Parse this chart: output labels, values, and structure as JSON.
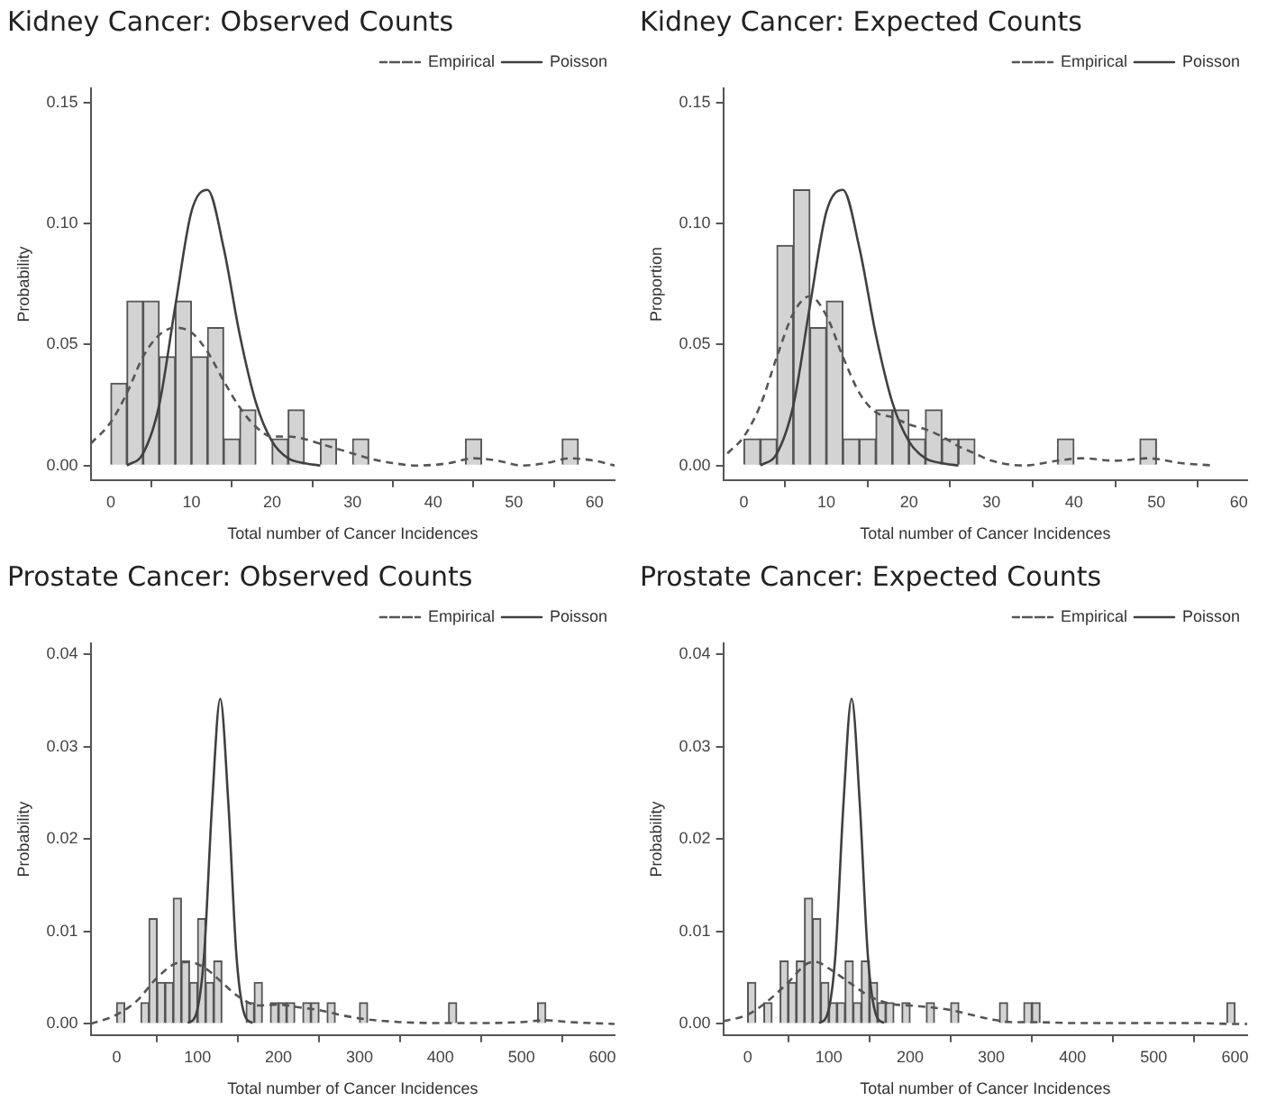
{
  "chart_data": [
    {
      "type": "histogram",
      "title": "Kidney Cancer: Observed Counts",
      "xlabel": "Total number of Cancer Incidences",
      "ylabel": "Probability",
      "color": "#d3d3d3",
      "legend": "top right",
      "bins": [
        0,
        2,
        4,
        6,
        8,
        10,
        12,
        14,
        16,
        18,
        20,
        22,
        24,
        26,
        28,
        30,
        32,
        34,
        36,
        38,
        40,
        42,
        44,
        46,
        48,
        50,
        52,
        54,
        56,
        58
      ],
      "values": [
        0.034,
        0.068,
        0.068,
        0.045,
        0.068,
        0.045,
        0.057,
        0.011,
        0.023,
        0,
        0.011,
        0.023,
        0,
        0.011,
        0,
        0.011,
        0,
        0,
        0,
        0,
        0,
        0,
        0.011,
        0,
        0,
        0,
        0,
        0,
        0.011
      ],
      "series": [
        {
          "type": "line",
          "name": "Empirical",
          "color": "#555555",
          "line_style": "dashed",
          "x": [
            -2.5,
            0,
            2,
            4,
            6,
            8,
            10,
            12,
            14,
            16,
            18,
            20,
            22,
            24,
            26,
            28,
            30,
            32,
            35,
            38,
            42,
            45,
            48,
            51,
            54,
            57,
            60,
            62.5
          ],
          "values": [
            0.009,
            0.018,
            0.03,
            0.045,
            0.054,
            0.057,
            0.055,
            0.047,
            0.035,
            0.024,
            0.016,
            0.012,
            0.012,
            0.011,
            0.009,
            0.007,
            0.005,
            0.003,
            0.001,
            0,
            0.001,
            0.003,
            0.002,
            0,
            0.001,
            0.003,
            0.002,
            0
          ]
        },
        {
          "type": "line",
          "name": "Poisson",
          "color": "#404040",
          "line_style": "solid",
          "x": [
            2,
            4,
            6,
            8,
            10,
            12,
            14,
            16,
            18,
            20,
            22,
            24,
            26
          ],
          "values": [
            0,
            0.005,
            0.025,
            0.066,
            0.105,
            0.114,
            0.09,
            0.054,
            0.026,
            0.01,
            0.003,
            0.001,
            0
          ]
        }
      ],
      "xlim": [
        -2.5,
        62.5
      ],
      "ylim": [
        -0.006,
        0.156
      ],
      "xticks": [
        0,
        10,
        20,
        30,
        40,
        50,
        60
      ],
      "yticks": [
        {
          "value": 0,
          "label": "0.00"
        },
        {
          "value": 0.05,
          "label": "0.05"
        },
        {
          "value": 0.1,
          "label": "0.10"
        },
        {
          "value": 0.15,
          "label": "0.15"
        }
      ]
    },
    {
      "type": "histogram",
      "title": "Kidney Cancer: Expected Counts",
      "xlabel": "Total number of Cancer Incidences",
      "ylabel": "Proportion",
      "color": "#d3d3d3",
      "legend": "top right",
      "bins": [
        0,
        2,
        4,
        6,
        8,
        10,
        12,
        14,
        16,
        18,
        20,
        22,
        24,
        26,
        28,
        30,
        32,
        34,
        36,
        38,
        40,
        42,
        44,
        46,
        48,
        50
      ],
      "values": [
        0.011,
        0.011,
        0.091,
        0.114,
        0.057,
        0.068,
        0.011,
        0.011,
        0.023,
        0.023,
        0.011,
        0.023,
        0.011,
        0.011,
        0,
        0,
        0,
        0,
        0,
        0.011,
        0,
        0,
        0,
        0,
        0.011
      ],
      "series": [
        {
          "type": "line",
          "name": "Empirical",
          "color": "#555555",
          "line_style": "dashed",
          "x": [
            -2,
            0,
            2,
            4,
            6,
            8,
            10,
            12,
            14,
            16,
            18,
            20,
            22,
            24,
            26,
            28,
            30,
            34,
            38,
            41,
            45,
            49,
            53,
            57
          ],
          "values": [
            0.005,
            0.012,
            0.025,
            0.045,
            0.063,
            0.07,
            0.062,
            0.045,
            0.03,
            0.022,
            0.02,
            0.017,
            0.015,
            0.012,
            0.008,
            0.005,
            0.002,
            0,
            0.002,
            0.003,
            0.002,
            0.003,
            0.001,
            0
          ]
        },
        {
          "type": "line",
          "name": "Poisson",
          "color": "#404040",
          "line_style": "solid",
          "x": [
            2,
            4,
            6,
            8,
            10,
            12,
            14,
            16,
            18,
            20,
            22,
            24,
            26
          ],
          "values": [
            0,
            0.005,
            0.025,
            0.066,
            0.105,
            0.114,
            0.09,
            0.054,
            0.026,
            0.01,
            0.003,
            0.001,
            0
          ]
        }
      ],
      "xlim": [
        -2.5,
        61
      ],
      "ylim": [
        -0.006,
        0.156
      ],
      "xticks": [
        0,
        10,
        20,
        30,
        40,
        50,
        60
      ],
      "yticks": [
        {
          "value": 0,
          "label": "0.00"
        },
        {
          "value": 0.05,
          "label": "0.05"
        },
        {
          "value": 0.1,
          "label": "0.10"
        },
        {
          "value": 0.15,
          "label": "0.15"
        }
      ]
    },
    {
      "type": "histogram",
      "title": "Prostate Cancer: Observed Counts",
      "xlabel": "Total number of Cancer Incidences",
      "ylabel": "Probability",
      "color": "#d3d3d3",
      "legend": "top right",
      "bins": [
        0,
        10,
        20,
        30,
        40,
        50,
        60,
        70,
        80,
        90,
        100,
        110,
        120,
        130,
        140,
        150,
        160,
        170,
        180,
        190,
        200,
        210,
        220,
        230,
        240,
        250,
        260,
        270,
        280,
        290,
        300,
        310,
        320,
        330,
        340,
        350,
        360,
        370,
        380,
        390,
        400,
        410,
        420,
        430,
        440,
        450,
        460,
        470,
        480,
        490,
        500,
        510,
        520,
        530
      ],
      "values": [
        0.0023,
        0,
        0,
        0.0023,
        0.0114,
        0.0045,
        0.0045,
        0.0136,
        0.0068,
        0.0045,
        0.0114,
        0.0045,
        0.0068,
        0,
        0,
        0,
        0.0023,
        0.0045,
        0,
        0.0023,
        0.0023,
        0.0023,
        0,
        0.0023,
        0.0023,
        0,
        0.0023,
        0,
        0,
        0,
        0.0023,
        0,
        0,
        0,
        0,
        0,
        0,
        0,
        0,
        0,
        0,
        0.0023,
        0,
        0,
        0,
        0,
        0,
        0,
        0,
        0,
        0,
        0,
        0.0023
      ],
      "series": [
        {
          "type": "line",
          "name": "Empirical",
          "color": "#555555",
          "line_style": "dashed",
          "x": [
            -32,
            0,
            25,
            50,
            75,
            90,
            110,
            130,
            150,
            175,
            200,
            225,
            250,
            275,
            300,
            350,
            400,
            450,
            500,
            530,
            560,
            615
          ],
          "values": [
            0,
            0.001,
            0.0025,
            0.005,
            0.0066,
            0.0067,
            0.006,
            0.0045,
            0.003,
            0.002,
            0.0021,
            0.0018,
            0.0015,
            0.001,
            0.0006,
            0.0002,
            0.0001,
            0.0001,
            0.0002,
            0.0004,
            0.0002,
            0
          ]
        },
        {
          "type": "line",
          "name": "Poisson",
          "color": "#404040",
          "line_style": "solid",
          "x": [
            88,
            98,
            108,
            118,
            128,
            138,
            148,
            158,
            168
          ],
          "values": [
            0.0001,
            0.001,
            0.0074,
            0.0239,
            0.0352,
            0.0239,
            0.0074,
            0.001,
            0.0001
          ]
        }
      ],
      "xlim": [
        -32,
        615
      ],
      "ylim": [
        -0.0012,
        0.0412
      ],
      "xticks": [
        0,
        100,
        200,
        300,
        400,
        500,
        600
      ],
      "yticks": [
        {
          "value": 0,
          "label": "0.00"
        },
        {
          "value": 0.01,
          "label": "0.01"
        },
        {
          "value": 0.02,
          "label": "0.02"
        },
        {
          "value": 0.03,
          "label": "0.03"
        },
        {
          "value": 0.04,
          "label": "0.04"
        }
      ]
    },
    {
      "type": "histogram",
      "title": "Prostate Cancer: Expected Counts",
      "xlabel": "Total number of Cancer Incidences",
      "ylabel": "Probability",
      "color": "#d3d3d3",
      "legend": "top right",
      "bins": [
        0,
        10,
        20,
        30,
        40,
        50,
        60,
        70,
        80,
        90,
        100,
        110,
        120,
        130,
        140,
        150,
        160,
        170,
        180,
        190,
        200,
        210,
        220,
        230,
        240,
        250,
        260,
        270,
        280,
        290,
        300,
        310,
        320,
        330,
        340,
        350,
        360,
        370,
        380,
        390,
        400,
        410,
        420,
        430,
        440,
        450,
        460,
        470,
        480,
        490,
        500,
        510,
        520,
        530,
        540,
        550,
        560,
        570,
        580,
        590,
        600
      ],
      "values": [
        0.0045,
        0,
        0.0023,
        0,
        0.0068,
        0.0045,
        0.0068,
        0.0136,
        0.0114,
        0.0045,
        0.0023,
        0.0023,
        0.0068,
        0.0023,
        0.0068,
        0.0045,
        0.0023,
        0.0023,
        0,
        0.0023,
        0,
        0,
        0.0023,
        0,
        0,
        0.0023,
        0,
        0,
        0,
        0,
        0,
        0.0023,
        0,
        0,
        0.0023,
        0.0023,
        0,
        0,
        0,
        0,
        0,
        0,
        0,
        0,
        0,
        0,
        0,
        0,
        0,
        0,
        0,
        0,
        0,
        0,
        0,
        0,
        0,
        0,
        0,
        0.0023
      ],
      "series": [
        {
          "type": "line",
          "name": "Empirical",
          "color": "#555555",
          "line_style": "dashed",
          "x": [
            -30,
            0,
            25,
            50,
            75,
            85,
            100,
            125,
            150,
            175,
            200,
            225,
            250,
            275,
            300,
            325,
            350,
            400,
            450,
            500,
            550,
            600,
            615
          ],
          "values": [
            0.0003,
            0.001,
            0.0025,
            0.0045,
            0.0066,
            0.0067,
            0.006,
            0.0045,
            0.003,
            0.0022,
            0.002,
            0.0018,
            0.0015,
            0.001,
            0.0005,
            0.0002,
            0.0002,
            0.0001,
            0.0001,
            0.0001,
            0.0001,
            0,
            0
          ]
        },
        {
          "type": "line",
          "name": "Poisson",
          "color": "#404040",
          "line_style": "solid",
          "x": [
            88,
            98,
            108,
            118,
            128,
            138,
            148,
            158,
            168
          ],
          "values": [
            0.0001,
            0.001,
            0.0074,
            0.0239,
            0.0352,
            0.0239,
            0.0074,
            0.001,
            0.0001
          ]
        }
      ],
      "xlim": [
        -30,
        615
      ],
      "ylim": [
        -0.0012,
        0.0412
      ],
      "xticks": [
        0,
        100,
        200,
        300,
        400,
        500,
        600
      ],
      "yticks": [
        {
          "value": 0,
          "label": "0.00"
        },
        {
          "value": 0.01,
          "label": "0.01"
        },
        {
          "value": 0.02,
          "label": "0.02"
        },
        {
          "value": 0.03,
          "label": "0.03"
        },
        {
          "value": 0.04,
          "label": "0.04"
        }
      ]
    }
  ]
}
